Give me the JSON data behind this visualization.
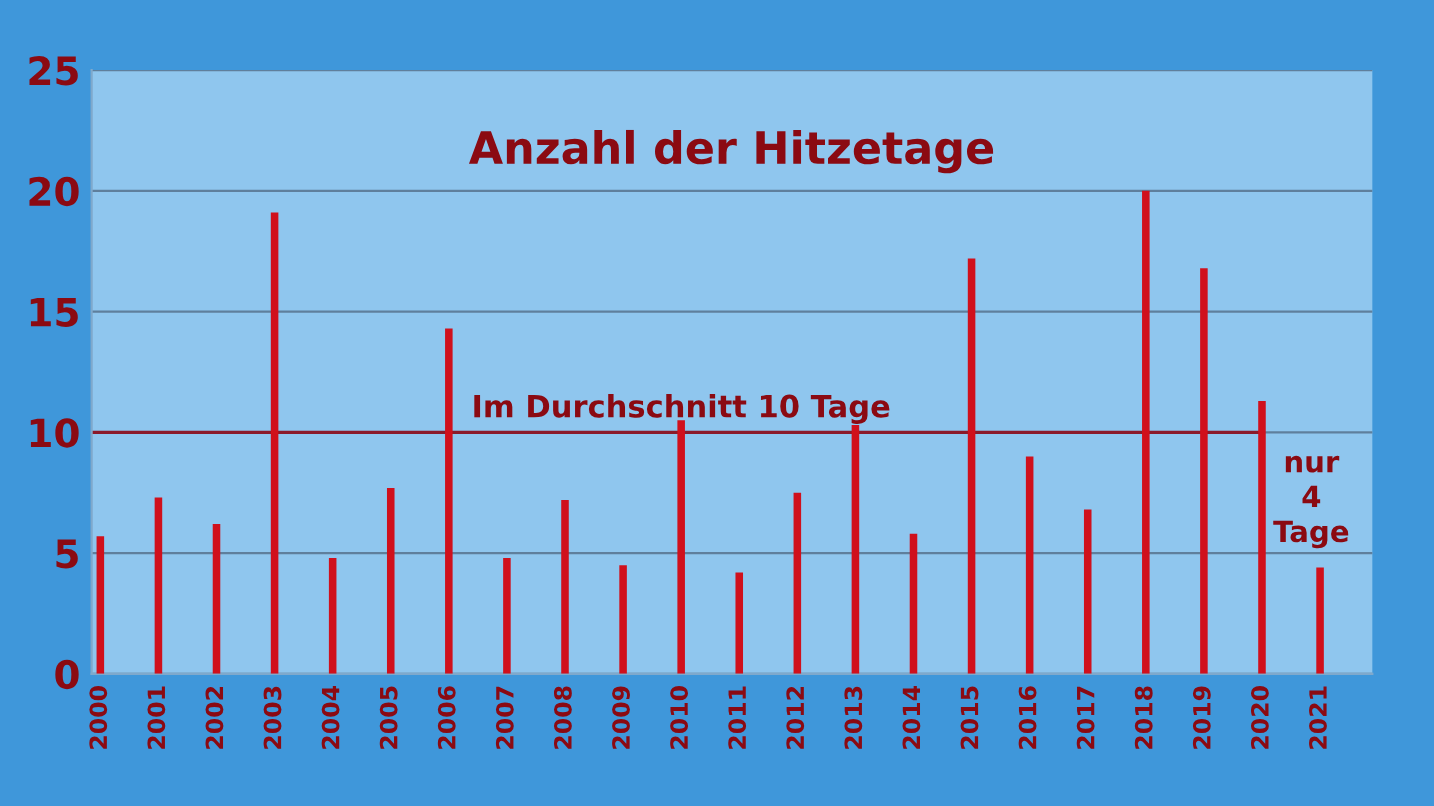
{
  "chart_data": {
    "type": "bar",
    "title": "Anzahl der Hitzetage",
    "categories": [
      "2000",
      "2001",
      "2002",
      "2003",
      "2004",
      "2005",
      "2006",
      "2007",
      "2008",
      "2009",
      "2010",
      "2011",
      "2012",
      "2013",
      "2014",
      "2015",
      "2016",
      "2017",
      "2018",
      "2019",
      "2020",
      "2021"
    ],
    "values": [
      5.7,
      7.3,
      6.2,
      19.1,
      4.8,
      7.7,
      14.3,
      4.8,
      7.2,
      4.5,
      10.5,
      4.2,
      7.5,
      10.3,
      5.8,
      17.2,
      9.0,
      6.8,
      20.0,
      16.8,
      11.3,
      4.4
    ],
    "color": "#d0101c",
    "ylim": [
      0,
      25
    ],
    "yticks": [
      0,
      5,
      10,
      15,
      20,
      25
    ],
    "grid": "y",
    "legend": false,
    "ref_lines": [
      {
        "axis": "y",
        "value": 10,
        "label": "Im Durchschnitt 10 Tage",
        "color": "#8b1a2a"
      }
    ],
    "annotations": [
      {
        "text": "nur\n4\nTage",
        "x": "2021",
        "y": 4.4
      }
    ]
  }
}
